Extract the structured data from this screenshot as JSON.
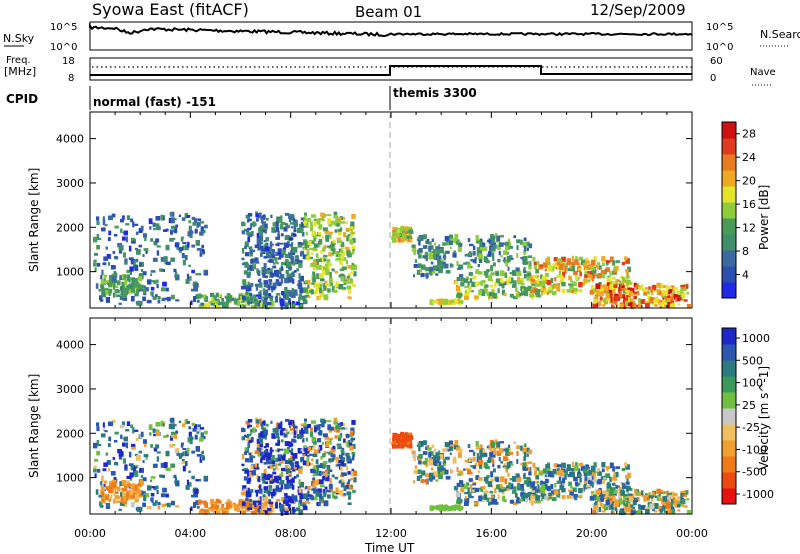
{
  "header": {
    "title": "Syowa East (fitACF)",
    "beam": "Beam 01",
    "date": "12/Sep/2009"
  },
  "strips": {
    "nsky_label": "N.Sky",
    "nsky_top": "10^5",
    "nsky_bottom": "10^0",
    "nsearch_label": "N.Search",
    "nsearch_top": "10^5",
    "nsearch_bottom": "10^0",
    "freq_label_1": "Freq.",
    "freq_label_2": "[MHz]",
    "freq_top": "18",
    "freq_bottom": "8",
    "nave_label": "Nave",
    "nave_top": "60",
    "nave_bottom": "0",
    "cpid_label": "CPID",
    "cpid_1": "normal (fast) -151",
    "cpid_2": "themis 3300"
  },
  "colors": {
    "power_scale": [
      "#1e28e6",
      "#2a4fb0",
      "#3a6aa0",
      "#3f8f6a",
      "#4a9a5a",
      "#8ecc3c",
      "#e4e42a",
      "#f0a820",
      "#e87a20",
      "#e03a20",
      "#d01010"
    ],
    "velocity_scale": [
      "#e81010",
      "#ee4a10",
      "#f07a18",
      "#f0a030",
      "#f0c060",
      "#c8c8c8",
      "#70c040",
      "#3a9a5a",
      "#2a7a80",
      "#2a58b0",
      "#1e28c8"
    ]
  },
  "chart_data": [
    {
      "type": "heatmap",
      "title": "Power",
      "xlabel": "Time UT",
      "ylabel": "Slant Range [km]",
      "x_ticks": [
        "00:00",
        "04:00",
        "08:00",
        "12:00",
        "16:00",
        "20:00",
        "00:00"
      ],
      "x_range_hours": [
        0,
        24
      ],
      "y_ticks": [
        1000,
        2000,
        3000,
        4000
      ],
      "y_range_km": [
        180,
        4600
      ],
      "colorbar_label": "Power [dB]",
      "colorbar_ticks": [
        "4",
        "8",
        "12",
        "16",
        "20",
        "24",
        "28"
      ],
      "colorbar_range": [
        0,
        30
      ]
    },
    {
      "type": "heatmap",
      "title": "Velocity",
      "xlabel": "Time UT",
      "ylabel": "Slant Range [km]",
      "x_ticks": [
        "00:00",
        "04:00",
        "08:00",
        "12:00",
        "16:00",
        "20:00",
        "00:00"
      ],
      "x_range_hours": [
        0,
        24
      ],
      "y_ticks": [
        1000,
        2000,
        3000,
        4000
      ],
      "y_range_km": [
        180,
        4600
      ],
      "colorbar_label": "Velocity [m s^-1]",
      "colorbar_ticks": [
        "1000",
        "500",
        "100",
        "25",
        "-25",
        "-100",
        "-500",
        "-1000"
      ]
    }
  ],
  "scatter_regions": [
    {
      "t0": 0.1,
      "t1": 4.6,
      "r0": 260,
      "r1": 2300,
      "n": 260,
      "p": [
        2,
        12
      ],
      "v": [
        -120,
        600
      ]
    },
    {
      "t0": 0.4,
      "t1": 2.0,
      "r0": 450,
      "r1": 900,
      "n": 90,
      "p": [
        8,
        16
      ],
      "v": [
        -400,
        -50
      ]
    },
    {
      "t0": 4.2,
      "t1": 7.2,
      "r0": 200,
      "r1": 480,
      "n": 110,
      "p": [
        8,
        18
      ],
      "v": [
        -400,
        -80
      ]
    },
    {
      "t0": 6.0,
      "t1": 8.5,
      "r0": 200,
      "r1": 2300,
      "n": 360,
      "p": [
        2,
        12
      ],
      "v": [
        -300,
        1000
      ]
    },
    {
      "t0": 8.5,
      "t1": 10.5,
      "r0": 400,
      "r1": 2300,
      "n": 260,
      "p": [
        10,
        20
      ],
      "v": [
        -300,
        600
      ]
    },
    {
      "t0": 12.0,
      "t1": 12.8,
      "r0": 1700,
      "r1": 2000,
      "n": 60,
      "p": [
        12,
        24
      ],
      "v": [
        -1000,
        -400
      ]
    },
    {
      "t0": 12.8,
      "t1": 17.5,
      "r0": 900,
      "r1": 1800,
      "n": 240,
      "p": [
        4,
        16
      ],
      "v": [
        -300,
        400
      ]
    },
    {
      "t0": 14.5,
      "t1": 18.0,
      "r0": 400,
      "r1": 900,
      "n": 120,
      "p": [
        8,
        20
      ],
      "v": [
        -200,
        400
      ]
    },
    {
      "t0": 17.5,
      "t1": 21.5,
      "r0": 500,
      "r1": 1300,
      "n": 220,
      "p": [
        12,
        26
      ],
      "v": [
        -200,
        400
      ]
    },
    {
      "t0": 20.0,
      "t1": 23.8,
      "r0": 200,
      "r1": 700,
      "n": 200,
      "p": [
        14,
        30
      ],
      "v": [
        -300,
        300
      ]
    },
    {
      "t0": 13.5,
      "t1": 14.8,
      "r0": 300,
      "r1": 340,
      "n": 30,
      "p": [
        14,
        22
      ],
      "v": [
        -20,
        20
      ]
    }
  ]
}
